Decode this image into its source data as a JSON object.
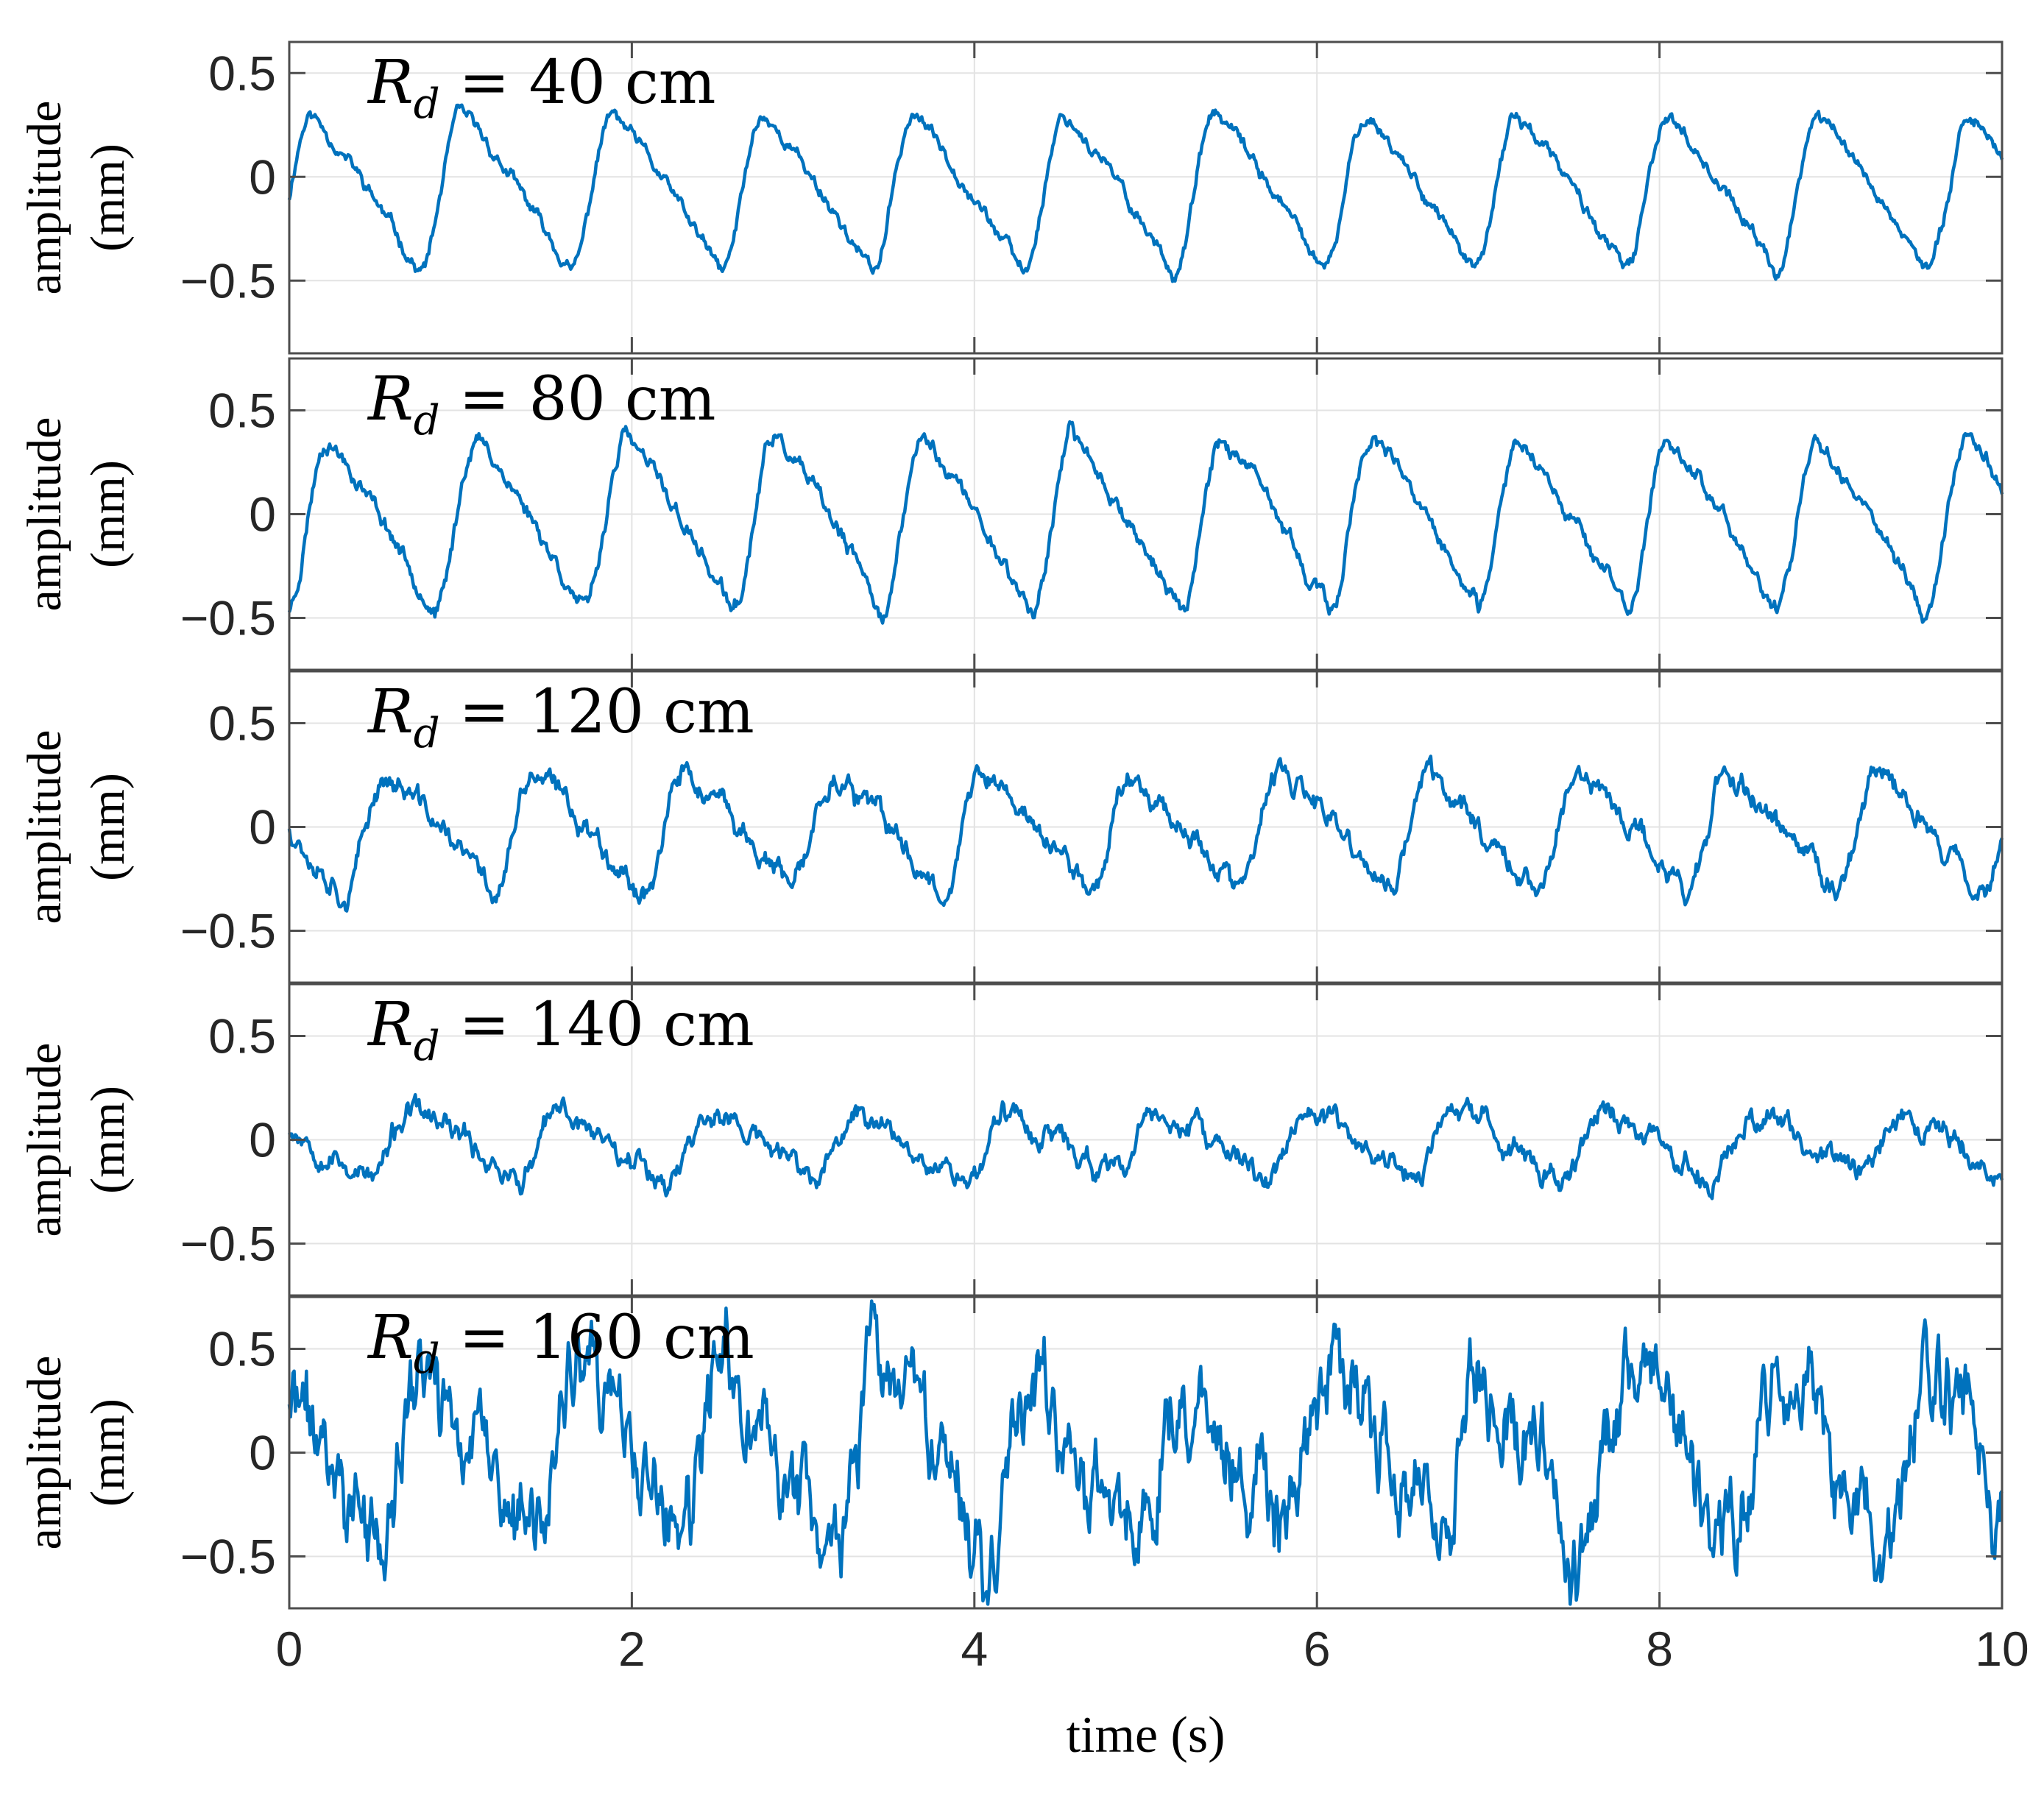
{
  "chart_data": [
    {
      "type": "line",
      "title": "R_d = 40 cm",
      "title_symbol": "R",
      "title_subscript": "d",
      "title_rest": " = 40 cm",
      "ylabel_line1": "amplitude",
      "ylabel_line2": "(mm)",
      "xlabel": "",
      "xlim": [
        0,
        10
      ],
      "ylim": [
        -0.85,
        0.65
      ],
      "yticks": [
        0.5,
        0,
        -0.5
      ],
      "ytick_labels": [
        "0.5",
        "0",
        "−0.5"
      ],
      "xticks": [
        0,
        2,
        4,
        6,
        8,
        10
      ],
      "grid": true,
      "signal": {
        "period": 0.88,
        "phase": 0.12,
        "amplitude": 0.38,
        "offset": -0.08,
        "noise": 0.02,
        "seed": 11
      },
      "series": [
        {
          "name": "amplitude",
          "color": "#0072bd"
        }
      ]
    },
    {
      "type": "line",
      "title": "R_d = 80 cm",
      "title_symbol": "R",
      "title_subscript": "d",
      "title_rest": " = 80 cm",
      "ylabel_line1": "amplitude",
      "ylabel_line2": "(mm)",
      "xlabel": "",
      "xlim": [
        0,
        10
      ],
      "ylim": [
        -0.75,
        0.75
      ],
      "yticks": [
        0.5,
        0,
        -0.5
      ],
      "ytick_labels": [
        "0.5",
        "0",
        "−0.5"
      ],
      "xticks": [
        0,
        2,
        4,
        6,
        8,
        10
      ],
      "grid": true,
      "signal": {
        "period": 0.87,
        "phase": 0.02,
        "amplitude": 0.42,
        "offset": -0.05,
        "noise": 0.025,
        "seed": 23
      },
      "series": [
        {
          "name": "amplitude",
          "color": "#0072bd"
        }
      ]
    },
    {
      "type": "line",
      "title": "R_d = 120 cm",
      "title_symbol": "R",
      "title_subscript": "d",
      "title_rest": " = 120 cm",
      "ylabel_line1": "amplitude",
      "ylabel_line2": "(mm)",
      "xlabel": "",
      "xlim": [
        0,
        10
      ],
      "ylim": [
        -0.75,
        0.75
      ],
      "yticks": [
        0.5,
        0,
        -0.5
      ],
      "ytick_labels": [
        "0.5",
        "0",
        "−0.5"
      ],
      "xticks": [
        0,
        2,
        4,
        6,
        8,
        10
      ],
      "grid": true,
      "signal": {
        "period": 0.87,
        "phase": 0.55,
        "amplitude": 0.28,
        "offset": -0.03,
        "noise": 0.035,
        "seed": 37
      },
      "series": [
        {
          "name": "amplitude",
          "color": "#0072bd"
        }
      ]
    },
    {
      "type": "line",
      "title": "R_d = 140 cm",
      "title_symbol": "R",
      "title_subscript": "d",
      "title_rest": " = 140 cm",
      "ylabel_line1": "amplitude",
      "ylabel_line2": "(mm)",
      "xlabel": "",
      "xlim": [
        0,
        10
      ],
      "ylim": [
        -0.75,
        0.75
      ],
      "yticks": [
        0.5,
        0,
        -0.5
      ],
      "ytick_labels": [
        "0.5",
        "0",
        "−0.5"
      ],
      "xticks": [
        0,
        2,
        4,
        6,
        8,
        10
      ],
      "grid": true,
      "signal": {
        "period": 0.87,
        "phase": 0.4,
        "amplitude": 0.16,
        "offset": -0.03,
        "noise": 0.035,
        "seed": 53
      },
      "series": [
        {
          "name": "amplitude",
          "color": "#0072bd"
        }
      ]
    },
    {
      "type": "line",
      "title": "R_d = 160 cm",
      "title_symbol": "R",
      "title_subscript": "d",
      "title_rest": " = 160 cm",
      "ylabel_line1": "amplitude",
      "ylabel_line2": "(mm)",
      "xlabel": "time (s)",
      "xlim": [
        0,
        10
      ],
      "ylim": [
        -0.75,
        0.75
      ],
      "yticks": [
        0.5,
        0,
        -0.5
      ],
      "ytick_labels": [
        "0.5",
        "0",
        "−0.5"
      ],
      "xticks": [
        0,
        2,
        4,
        6,
        8,
        10
      ],
      "xtick_labels": [
        "0",
        "2",
        "4",
        "6",
        "8",
        "10"
      ],
      "grid": true,
      "signal": {
        "period": 0.88,
        "phase": 0.35,
        "amplitude": 0.42,
        "offset": -0.05,
        "noise": 0.13,
        "seed": 71
      },
      "series": [
        {
          "name": "amplitude",
          "color": "#0072bd"
        }
      ]
    }
  ],
  "colors": {
    "line": "#0072bd",
    "axes": "#4d4d4d",
    "grid": "#e3e3e3",
    "tick_text": "#262626"
  }
}
